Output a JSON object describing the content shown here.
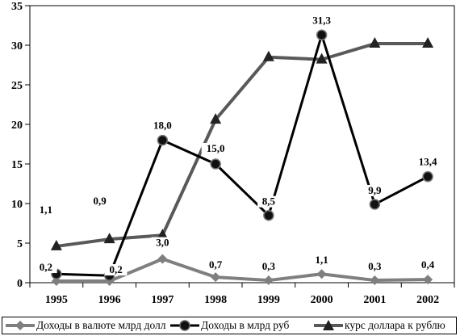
{
  "chart_data": {
    "type": "line",
    "title": "",
    "xlabel": "",
    "ylabel": "",
    "categories": [
      "1995",
      "1996",
      "1997",
      "1998",
      "1999",
      "2000",
      "2001",
      "2002"
    ],
    "y_ticks": [
      "0",
      "5",
      "10",
      "15",
      "20",
      "25",
      "30",
      "35"
    ],
    "ylim": [
      0,
      35
    ],
    "grid": false,
    "legend_position": "bottom",
    "series": [
      {
        "name": "Доходы в валюте млрд долл",
        "values": [
          0.2,
          0.2,
          3.0,
          0.7,
          0.3,
          1.1,
          0.3,
          0.4
        ],
        "labels": [
          "0,2",
          "0,2",
          "3,0",
          "0,7",
          "0,3",
          "1,1",
          "0,3",
          "0,4"
        ],
        "color": "#7f7f7f",
        "marker": "diamond"
      },
      {
        "name": "Доходы в млрд руб",
        "values": [
          1.1,
          0.9,
          18.0,
          15.0,
          8.5,
          31.3,
          9.9,
          13.4
        ],
        "labels": [
          "1,1",
          "0,9",
          "18,0",
          "15,0",
          "8,5",
          "31,3",
          "9,9",
          "13,4"
        ],
        "color": "#000000",
        "marker": "circle"
      },
      {
        "name": "курс доллара к рублю",
        "values": [
          4.6,
          5.5,
          6.0,
          20.6,
          28.5,
          28.2,
          30.2,
          30.2
        ],
        "labels": [],
        "color": "#595959",
        "marker": "triangle"
      }
    ]
  }
}
